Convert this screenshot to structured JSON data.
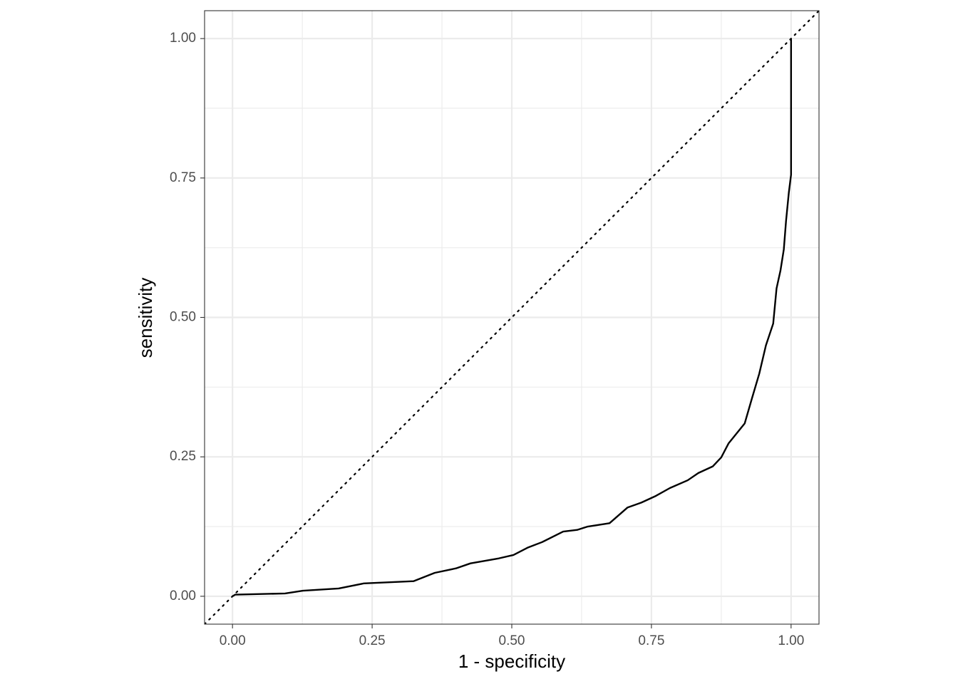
{
  "chart_data": {
    "type": "line",
    "x_label": "1 - specificity",
    "y_label": "sensitivity",
    "x": [
      0,
      0.005,
      0.094,
      0.126,
      0.19,
      0.235,
      0.324,
      0.362,
      0.4,
      0.426,
      0.477,
      0.503,
      0.528,
      0.554,
      0.592,
      0.617,
      0.636,
      0.675,
      0.707,
      0.732,
      0.758,
      0.783,
      0.815,
      0.834,
      0.86,
      0.875,
      0.888,
      0.917,
      0.93,
      0.943,
      0.955,
      0.968,
      0.974,
      0.981,
      0.987,
      0.991,
      0.996,
      1.0,
      1.0
    ],
    "values": [
      0,
      0.003,
      0.005,
      0.01,
      0.014,
      0.023,
      0.027,
      0.042,
      0.05,
      0.059,
      0.068,
      0.074,
      0.087,
      0.097,
      0.116,
      0.119,
      0.125,
      0.131,
      0.159,
      0.168,
      0.18,
      0.194,
      0.208,
      0.221,
      0.233,
      0.249,
      0.274,
      0.31,
      0.355,
      0.399,
      0.45,
      0.489,
      0.552,
      0.584,
      0.622,
      0.673,
      0.724,
      0.756,
      1.0
    ],
    "color": "#000000",
    "xlim": [
      -0.05,
      1.05
    ],
    "ylim": [
      -0.05,
      1.05
    ],
    "xticks": [
      {
        "value": 0,
        "label": "0.00"
      },
      {
        "value": 0.25,
        "label": "0.25"
      },
      {
        "value": 0.5,
        "label": "0.50"
      },
      {
        "value": 0.75,
        "label": "0.75"
      },
      {
        "value": 1,
        "label": "1.00"
      }
    ],
    "yticks": [
      {
        "value": 0,
        "label": "0.00"
      },
      {
        "value": 0.25,
        "label": "0.25"
      },
      {
        "value": 0.5,
        "label": "0.50"
      },
      {
        "value": 0.75,
        "label": "0.75"
      },
      {
        "value": 1,
        "label": "1.00"
      }
    ],
    "minor_ticks": [
      0.125,
      0.375,
      0.625,
      0.875
    ],
    "grid": true,
    "diagonal": true
  }
}
